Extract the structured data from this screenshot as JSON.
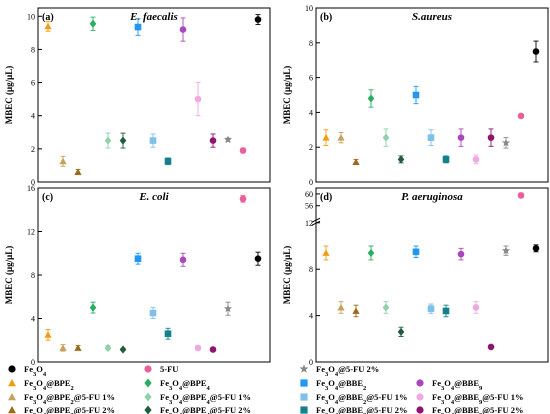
{
  "figure": {
    "ylabel": "MBEC (μg/μL)"
  },
  "legend": {
    "items": [
      {
        "id": "fe3o4",
        "label": "Fe3O4",
        "color": "#000000",
        "marker": "circle"
      },
      {
        "id": "fu5",
        "label": "5-FU",
        "color": "#e8609a",
        "marker": "circle"
      },
      {
        "id": "fe3o4_5fu2",
        "label": "Fe3O4@5-FU 2%",
        "color": "#888888",
        "marker": "star"
      },
      {
        "id": "bpe2",
        "label": "Fe3O4@BPE2",
        "color": "#f39c12",
        "marker": "triangle"
      },
      {
        "id": "bpe4",
        "label": "Fe3O4@BPE4",
        "color": "#27ae60",
        "marker": "diamond"
      },
      {
        "id": "bbe2",
        "label": "Fe3O4@BBE2",
        "color": "#2196f3",
        "marker": "square"
      },
      {
        "id": "bbe9",
        "label": "Fe3O4@BBE9",
        "color": "#ab47bc",
        "marker": "circle"
      },
      {
        "id": "bpe2_1",
        "label": "Fe3O4@BPE2@5-FU 1%",
        "color": "#c8a060",
        "marker": "triangle"
      },
      {
        "id": "bpe4_1",
        "label": "Fe3O4@BPE4@5-FU 1%",
        "color": "#8fd1a8",
        "marker": "diamond"
      },
      {
        "id": "bbe2_1",
        "label": "Fe3O4@BBE2@5-FU 1%",
        "color": "#7fbfe8",
        "marker": "square"
      },
      {
        "id": "bbe9_1",
        "label": "Fe3O4@BBE9@5-FU 1%",
        "color": "#f0a8e0",
        "marker": "circle"
      },
      {
        "id": "bpe2_2",
        "label": "Fe3O4@BPE2@5-FU 2%",
        "color": "#9c6a1a",
        "marker": "triangle"
      },
      {
        "id": "bpe4_2",
        "label": "Fe3O4@BPE4@5-FU 2%",
        "color": "#1e5e3c",
        "marker": "diamond"
      },
      {
        "id": "bbe2_2",
        "label": "Fe3O4@BBE2@5-FU 2%",
        "color": "#15808c",
        "marker": "square"
      },
      {
        "id": "bbe9_2",
        "label": "Fe3O4@BBE9@5-FU 2%",
        "color": "#8e1470",
        "marker": "circle"
      }
    ]
  },
  "chart_data": [
    {
      "type": "scatter",
      "panel": "(a)",
      "title": "E. faecalis",
      "ylabel": "MBEC (μg/μL)",
      "ylim": [
        0,
        10.5
      ],
      "yticks": [
        0,
        2,
        4,
        6,
        8,
        10
      ],
      "series": [
        {
          "ref": "bpe2",
          "x": 1,
          "y": 9.4,
          "err": 0.3
        },
        {
          "ref": "bpe2_1",
          "x": 2,
          "y": 1.25,
          "err": 0.3
        },
        {
          "ref": "bpe2_2",
          "x": 3,
          "y": 0.6,
          "err": 0.15
        },
        {
          "ref": "bpe4",
          "x": 4,
          "y": 9.55,
          "err": 0.4
        },
        {
          "ref": "bpe4_1",
          "x": 5,
          "y": 2.5,
          "err": 0.45
        },
        {
          "ref": "bpe4_2",
          "x": 6,
          "y": 2.5,
          "err": 0.45
        },
        {
          "ref": "bbe2",
          "x": 7,
          "y": 9.35,
          "err": 0.5
        },
        {
          "ref": "bbe2_1",
          "x": 8,
          "y": 2.5,
          "err": 0.4
        },
        {
          "ref": "bbe2_2",
          "x": 9,
          "y": 1.25,
          "err": 0.2
        },
        {
          "ref": "bbe9",
          "x": 10,
          "y": 9.2,
          "err": 0.7
        },
        {
          "ref": "bbe9_1",
          "x": 11,
          "y": 5.0,
          "err": 1.0
        },
        {
          "ref": "bbe9_2",
          "x": 12,
          "y": 2.5,
          "err": 0.4
        },
        {
          "ref": "fe3o4_5fu2",
          "x": 13,
          "y": 2.55,
          "err": 0.1
        },
        {
          "ref": "fu5",
          "x": 14,
          "y": 1.9,
          "err": 0.15
        },
        {
          "ref": "fe3o4",
          "x": 15,
          "y": 9.8,
          "err": 0.3
        }
      ]
    },
    {
      "type": "scatter",
      "panel": "(b)",
      "title": "S.aureus",
      "ylabel": "MBEC (μg/μL)",
      "ylim": [
        0,
        10
      ],
      "yticks": [
        0,
        2,
        4,
        6,
        8,
        10
      ],
      "series": [
        {
          "ref": "bpe2",
          "x": 1,
          "y": 2.55,
          "err": 0.45
        },
        {
          "ref": "bpe2_1",
          "x": 2,
          "y": 2.55,
          "err": 0.3
        },
        {
          "ref": "bpe2_2",
          "x": 3,
          "y": 1.15,
          "err": 0.15
        },
        {
          "ref": "bpe4",
          "x": 4,
          "y": 4.8,
          "err": 0.5
        },
        {
          "ref": "bpe4_1",
          "x": 5,
          "y": 2.55,
          "err": 0.5
        },
        {
          "ref": "bpe4_2",
          "x": 6,
          "y": 1.3,
          "err": 0.2
        },
        {
          "ref": "bbe2",
          "x": 7,
          "y": 5.0,
          "err": 0.5
        },
        {
          "ref": "bbe2_1",
          "x": 8,
          "y": 2.55,
          "err": 0.45
        },
        {
          "ref": "bbe2_2",
          "x": 9,
          "y": 1.3,
          "err": 0.2
        },
        {
          "ref": "bbe9",
          "x": 10,
          "y": 2.55,
          "err": 0.5
        },
        {
          "ref": "bbe9_1",
          "x": 11,
          "y": 1.3,
          "err": 0.25
        },
        {
          "ref": "bbe9_2",
          "x": 12,
          "y": 2.55,
          "err": 0.5
        },
        {
          "ref": "fe3o4_5fu2",
          "x": 13,
          "y": 2.25,
          "err": 0.3
        },
        {
          "ref": "fu5",
          "x": 14,
          "y": 3.8,
          "err": 0.1
        },
        {
          "ref": "fe3o4",
          "x": 15,
          "y": 7.5,
          "err": 0.6
        }
      ]
    },
    {
      "type": "scatter",
      "panel": "(c)",
      "title": "E. coli",
      "ylabel": "MBEC (μg/μL)",
      "ylim": [
        0,
        16
      ],
      "yticks": [
        0,
        4,
        8,
        12,
        16
      ],
      "series": [
        {
          "ref": "bpe2",
          "x": 1,
          "y": 2.5,
          "err": 0.5
        },
        {
          "ref": "bpe2_1",
          "x": 2,
          "y": 1.3,
          "err": 0.3
        },
        {
          "ref": "bpe2_2",
          "x": 3,
          "y": 1.3,
          "err": 0.2
        },
        {
          "ref": "bpe4",
          "x": 4,
          "y": 5.0,
          "err": 0.5
        },
        {
          "ref": "bpe4_1",
          "x": 5,
          "y": 1.3,
          "err": 0.2
        },
        {
          "ref": "bpe4_2",
          "x": 6,
          "y": 1.15,
          "err": 0.1
        },
        {
          "ref": "bbe2",
          "x": 7,
          "y": 9.5,
          "err": 0.5
        },
        {
          "ref": "bbe2_1",
          "x": 8,
          "y": 4.5,
          "err": 0.5
        },
        {
          "ref": "bbe2_2",
          "x": 9,
          "y": 2.6,
          "err": 0.5
        },
        {
          "ref": "bbe9",
          "x": 10,
          "y": 9.4,
          "err": 0.6
        },
        {
          "ref": "bbe9_1",
          "x": 11,
          "y": 1.3,
          "err": 0.2
        },
        {
          "ref": "bbe9_2",
          "x": 12,
          "y": 1.15,
          "err": 0.1
        },
        {
          "ref": "fe3o4_5fu2",
          "x": 13,
          "y": 4.9,
          "err": 0.6
        },
        {
          "ref": "fu5",
          "x": 14,
          "y": 15.0,
          "err": 0.3
        },
        {
          "ref": "fe3o4",
          "x": 15,
          "y": 9.5,
          "err": 0.6
        }
      ]
    },
    {
      "type": "scatter",
      "panel": "(d)",
      "title": "P. aeruginosa",
      "ylabel": "MBEC (μg/μL)",
      "axis_break": {
        "from": 12,
        "to": 52
      },
      "ylim": [
        0,
        62
      ],
      "yticks": [
        0,
        4,
        8,
        12,
        56,
        60
      ],
      "series": [
        {
          "ref": "bpe2",
          "x": 1,
          "y": 9.4,
          "err": 0.6
        },
        {
          "ref": "bpe2_1",
          "x": 2,
          "y": 4.7,
          "err": 0.5
        },
        {
          "ref": "bpe2_2",
          "x": 3,
          "y": 4.4,
          "err": 0.5
        },
        {
          "ref": "bpe4",
          "x": 4,
          "y": 9.4,
          "err": 0.6
        },
        {
          "ref": "bpe4_1",
          "x": 5,
          "y": 4.7,
          "err": 0.5
        },
        {
          "ref": "bpe4_2",
          "x": 6,
          "y": 2.6,
          "err": 0.4
        },
        {
          "ref": "bbe2",
          "x": 7,
          "y": 9.5,
          "err": 0.5
        },
        {
          "ref": "bbe2_1",
          "x": 8,
          "y": 4.6,
          "err": 0.4
        },
        {
          "ref": "bbe2_2",
          "x": 9,
          "y": 4.4,
          "err": 0.5
        },
        {
          "ref": "bbe9",
          "x": 10,
          "y": 9.3,
          "err": 0.5
        },
        {
          "ref": "bbe9_1",
          "x": 11,
          "y": 4.7,
          "err": 0.5
        },
        {
          "ref": "bbe9_2",
          "x": 12,
          "y": 1.3,
          "err": 0.1
        },
        {
          "ref": "fe3o4_5fu2",
          "x": 13,
          "y": 9.6,
          "err": 0.4
        },
        {
          "ref": "fu5",
          "x": 14,
          "y": 59.5,
          "err": 0.8
        },
        {
          "ref": "fe3o4",
          "x": 15,
          "y": 9.8,
          "err": 0.3
        }
      ]
    }
  ]
}
